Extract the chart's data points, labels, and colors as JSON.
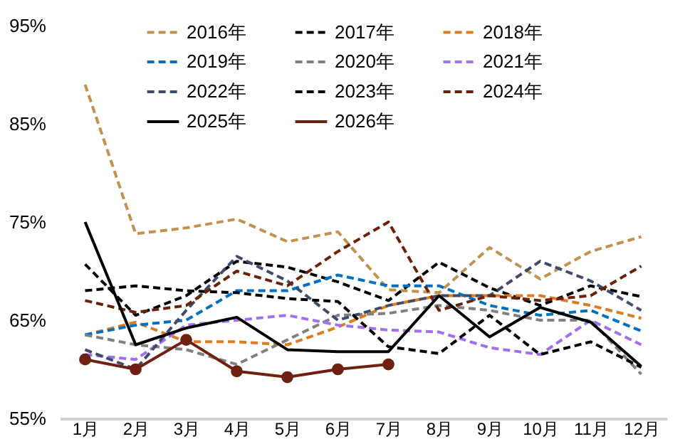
{
  "chart_data": {
    "type": "line",
    "categories": [
      "1月",
      "2月",
      "3月",
      "4月",
      "5月",
      "6月",
      "7月",
      "8月",
      "9月",
      "10月",
      "11月",
      "12月"
    ],
    "ylim": [
      55,
      95
    ],
    "yticks": [
      {
        "value": 55,
        "label": "55%"
      },
      {
        "value": 65,
        "label": "65%"
      },
      {
        "value": 75,
        "label": "75%"
      },
      {
        "value": 85,
        "label": "85%"
      },
      {
        "value": 95,
        "label": "95%"
      }
    ],
    "grid": false,
    "legend": "top",
    "line_style": "dashed",
    "marker": "none",
    "series": [
      {
        "name": "2016年",
        "color": "#c0914f",
        "values": [
          89,
          73.8,
          74.4,
          75.3,
          73,
          74,
          68.1,
          67.8,
          72.4,
          69.2,
          72,
          73.5
        ]
      },
      {
        "name": "2017年",
        "color": "#000000",
        "values": [
          70.7,
          65.5,
          67.5,
          71,
          70.4,
          68.9,
          67,
          70.9,
          68.3,
          66.5,
          68.5,
          67.4
        ]
      },
      {
        "name": "2018年",
        "color": "#e07b20",
        "values": [
          63.5,
          64.8,
          62.8,
          62.8,
          62.5,
          64.3,
          66.5,
          67.5,
          67.5,
          67.5,
          66.5,
          65.2
        ]
      },
      {
        "name": "2019年",
        "color": "#0070c0",
        "values": [
          63.5,
          64.5,
          65,
          68,
          68,
          69.6,
          68.5,
          68.5,
          66.5,
          65.5,
          66,
          63.9
        ]
      },
      {
        "name": "2020年",
        "color": "#808080",
        "values": [
          63.5,
          62.5,
          62,
          60.5,
          63,
          65.5,
          65.7,
          66.5,
          66,
          65,
          65,
          59.5
        ]
      },
      {
        "name": "2021年",
        "color": "#a070f0",
        "values": [
          61.5,
          61,
          64.5,
          65,
          65.5,
          64.5,
          64,
          63.8,
          62.2,
          61.5,
          65,
          62.5
        ]
      },
      {
        "name": "2022年",
        "color": "#404a6a",
        "values": [
          62,
          60,
          66,
          71.5,
          69,
          65,
          66.5,
          67.5,
          67.5,
          71,
          69,
          66
        ]
      },
      {
        "name": "2023年",
        "color": "#000000",
        "values": [
          68,
          68.5,
          68,
          67.8,
          67.2,
          66.9,
          62.3,
          61.6,
          65.5,
          61.5,
          62.8,
          60.2
        ]
      },
      {
        "name": "2024年",
        "color": "#6b2008",
        "values": [
          67,
          65.8,
          66.5,
          70,
          68.5,
          72,
          75,
          66,
          67.5,
          67,
          67.5,
          70.5
        ]
      },
      {
        "name": "2025年",
        "color": "#000000",
        "line_style": "solid",
        "values": [
          75,
          62.5,
          64.2,
          65.3,
          62,
          61.8,
          61.8,
          67.5,
          63.3,
          66.3,
          64.8,
          60.3
        ]
      },
      {
        "name": "2026年",
        "color": "#702010",
        "line_style": "solid",
        "marker": "circle",
        "values": [
          61,
          60,
          63,
          59.8,
          59.2,
          60,
          60.5,
          null,
          null,
          null,
          null,
          null
        ]
      }
    ]
  }
}
